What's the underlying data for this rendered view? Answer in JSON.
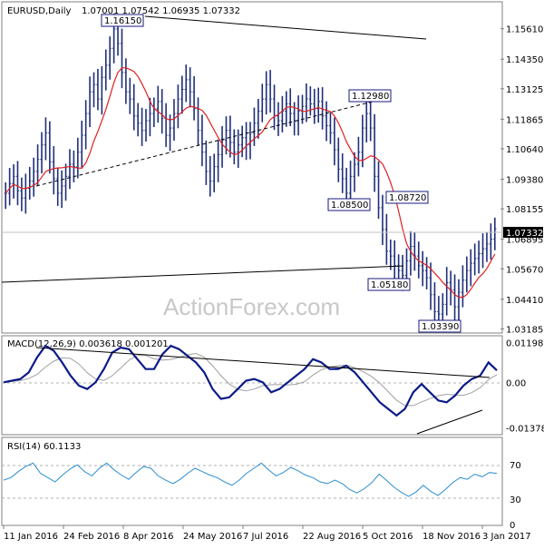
{
  "header": {
    "symbol": "EURUSD,Daily",
    "ohlc": "1.07001 1.07542 1.06935 1.07332"
  },
  "watermark": "ActionForex.com",
  "colors": {
    "background": "#ffffff",
    "bars": "#1f2f7a",
    "ma": "#e02020",
    "trendline": "#000000",
    "macd": "#0b1a88",
    "signal": "#a0a0a0",
    "rsi": "#2b8fd0",
    "grid": "#c8c8c8"
  },
  "chart_data": [
    {
      "type": "bar",
      "panel": "price",
      "title": "EURUSD,Daily",
      "yticks": [
        "1.15610",
        "1.14350",
        "1.13125",
        "1.11865",
        "1.10640",
        "1.09380",
        "1.08155",
        "1.06895",
        "1.05670",
        "1.04410",
        "1.03185"
      ],
      "ylim": [
        1.0305,
        1.1665
      ],
      "current_price": "1.07332",
      "annotations": [
        {
          "label": "1.16150",
          "value": 1.1615
        },
        {
          "label": "1.12980",
          "value": 1.1298
        },
        {
          "label": "1.08500",
          "value": 1.085
        },
        {
          "label": "1.08720",
          "value": 1.0872
        },
        {
          "label": "1.05180",
          "value": 1.0518
        },
        {
          "label": "1.03390",
          "value": 1.0339
        }
      ],
      "xticks": [
        "11 Jan 2016",
        "24 Feb 2016",
        "8 Apr 2016",
        "24 May 2016",
        "7 Jul 2016",
        "22 Aug 2016",
        "5 Oct 2016",
        "18 Nov 2016",
        "3 Jan 2017"
      ],
      "close": [
        1.088,
        1.092,
        1.095,
        1.089,
        1.086,
        1.09,
        1.093,
        1.097,
        1.102,
        1.108,
        1.113,
        1.101,
        1.094,
        1.088,
        1.091,
        1.095,
        1.1,
        1.099,
        1.105,
        1.112,
        1.121,
        1.13,
        1.133,
        1.127,
        1.136,
        1.141,
        1.148,
        1.156,
        1.15,
        1.138,
        1.13,
        1.127,
        1.12,
        1.117,
        1.114,
        1.118,
        1.121,
        1.123,
        1.126,
        1.119,
        1.112,
        1.115,
        1.121,
        1.127,
        1.131,
        1.135,
        1.13,
        1.123,
        1.114,
        1.105,
        1.097,
        1.093,
        1.099,
        1.104,
        1.11,
        1.114,
        1.109,
        1.105,
        1.108,
        1.111,
        1.108,
        1.113,
        1.117,
        1.122,
        1.127,
        1.133,
        1.127,
        1.12,
        1.118,
        1.122,
        1.125,
        1.121,
        1.118,
        1.122,
        1.124,
        1.127,
        1.125,
        1.123,
        1.126,
        1.12,
        1.116,
        1.113,
        1.106,
        1.098,
        1.094,
        1.088,
        1.095,
        1.1,
        1.105,
        1.115,
        1.121,
        1.115,
        1.095,
        1.082,
        1.073,
        1.064,
        1.062,
        1.058,
        1.056,
        1.054,
        1.06,
        1.066,
        1.062,
        1.058,
        1.056,
        1.053,
        1.046,
        1.039,
        1.038,
        1.042,
        1.051,
        1.048,
        1.041,
        1.047,
        1.052,
        1.056,
        1.059,
        1.061,
        1.063,
        1.065,
        1.067,
        1.069,
        1.0733
      ],
      "moving_average": {
        "period": 55
      },
      "trendlines": [
        {
          "from": [
            "11 Jan 2016",
            null
          ],
          "note": "descending upper"
        },
        {
          "note": "rising support"
        },
        {
          "note": "dashed rising"
        }
      ]
    },
    {
      "type": "line",
      "panel": "macd",
      "title": "MACD(12,26,9) 0.003618 0.001201",
      "yticks": [
        "0.011982",
        "0.00",
        "-0.013788"
      ],
      "ylim": [
        -0.0155,
        0.0135
      ],
      "series": [
        {
          "name": "MACD",
          "values": [
            0.0,
            0.0005,
            0.001,
            0.003,
            0.0075,
            0.011,
            0.0095,
            0.006,
            0.002,
            -0.001,
            -0.002,
            0.0,
            0.004,
            0.009,
            0.0105,
            0.01,
            0.007,
            0.004,
            0.004,
            0.0085,
            0.011,
            0.01,
            0.008,
            0.006,
            0.003,
            -0.002,
            -0.005,
            -0.0045,
            -0.002,
            0.0005,
            0.001,
            0.0,
            -0.003,
            -0.002,
            0.0,
            0.002,
            0.004,
            0.007,
            0.006,
            0.004,
            0.004,
            0.005,
            0.003,
            0.0,
            -0.003,
            -0.006,
            -0.008,
            -0.01,
            -0.008,
            -0.003,
            -0.0005,
            -0.003,
            -0.0055,
            -0.006,
            -0.004,
            -0.001,
            0.001,
            0.002,
            0.006,
            0.0036
          ]
        }
      ]
    },
    {
      "type": "line",
      "panel": "rsi",
      "title": "RSI(14) 60.1133",
      "yticks": [
        "70",
        "30",
        "0"
      ],
      "ylim": [
        0,
        100
      ],
      "levels": [
        70,
        30
      ],
      "series": [
        {
          "name": "RSI",
          "values": [
            52,
            55,
            62,
            68,
            72,
            60,
            55,
            50,
            58,
            65,
            70,
            62,
            57,
            66,
            72,
            64,
            58,
            53,
            61,
            68,
            66,
            57,
            52,
            48,
            53,
            60,
            66,
            62,
            58,
            55,
            50,
            46,
            52,
            60,
            66,
            72,
            64,
            57,
            61,
            67,
            63,
            58,
            55,
            50,
            48,
            52,
            48,
            41,
            37,
            42,
            49,
            59,
            52,
            44,
            38,
            33,
            38,
            46,
            39,
            34,
            41,
            49,
            55,
            53,
            59,
            56,
            61,
            60
          ]
        }
      ]
    }
  ]
}
